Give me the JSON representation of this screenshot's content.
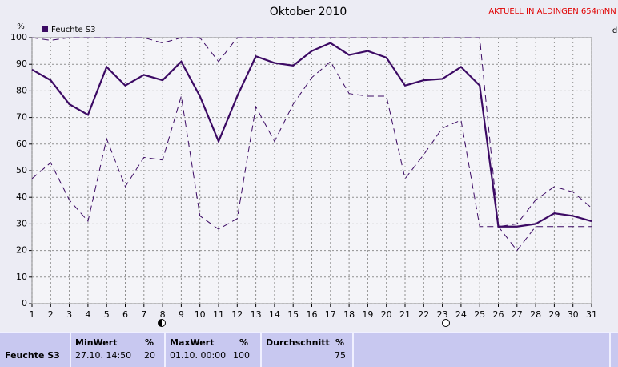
{
  "chart_data": {
    "type": "line",
    "title": "Oktober 2010",
    "subtitle": "AKTUELL IN ALDINGEN 654mNN",
    "y_label": "%",
    "y2_label": "d",
    "x": [
      1,
      2,
      3,
      4,
      5,
      6,
      7,
      8,
      9,
      10,
      11,
      12,
      13,
      14,
      15,
      16,
      17,
      18,
      19,
      20,
      21,
      22,
      23,
      24,
      25,
      26,
      27,
      28,
      29,
      30,
      31
    ],
    "series": [
      {
        "name": "Feuchte S3",
        "color": "#3c0a64",
        "style": "solid",
        "values": [
          88,
          84,
          75,
          71,
          89,
          82,
          86,
          84,
          91,
          78,
          61,
          78,
          93,
          90.5,
          89.5,
          95,
          98,
          93.5,
          95,
          92.5,
          82,
          84,
          84.5,
          89,
          82,
          29,
          29,
          30,
          34,
          33,
          31
        ]
      },
      {
        "color": "#3c0a64",
        "style": "dashed",
        "values": [
          100,
          99,
          100,
          100,
          100,
          100,
          100,
          98,
          100,
          100,
          91,
          100,
          100,
          100,
          100,
          100,
          100,
          100,
          100,
          100,
          100,
          100,
          100,
          100,
          100,
          29,
          30,
          39,
          44,
          42,
          36
        ]
      },
      {
        "color": "#3c0a64",
        "style": "dashed",
        "values": [
          47,
          53,
          39,
          31,
          62,
          44,
          55,
          54,
          78,
          33,
          28,
          32,
          74,
          61,
          75,
          85,
          91,
          79,
          78,
          78,
          47,
          56,
          66,
          69,
          29,
          29,
          20,
          29,
          29,
          29,
          29
        ]
      }
    ],
    "xlim": [
      1,
      31
    ],
    "xticks": [
      1,
      2,
      3,
      4,
      5,
      6,
      7,
      8,
      9,
      10,
      11,
      12,
      13,
      14,
      15,
      16,
      17,
      18,
      19,
      20,
      21,
      22,
      23,
      24,
      25,
      26,
      27,
      28,
      29,
      30,
      31
    ],
    "ylim": [
      0,
      100
    ],
    "yticks": [
      0,
      10,
      20,
      30,
      40,
      50,
      60,
      70,
      80,
      90,
      100
    ],
    "grid": true
  },
  "summary": {
    "row_label": "Feuchte S3",
    "columns": [
      {
        "header": "MinWert",
        "unit": "%",
        "time": "27.10. 14:50",
        "value": "20"
      },
      {
        "header": "MaxWert",
        "unit": "%",
        "time": "01.10. 00:00",
        "value": "100"
      },
      {
        "header": "Durchschnitt",
        "unit": "%",
        "value": "75"
      }
    ]
  }
}
